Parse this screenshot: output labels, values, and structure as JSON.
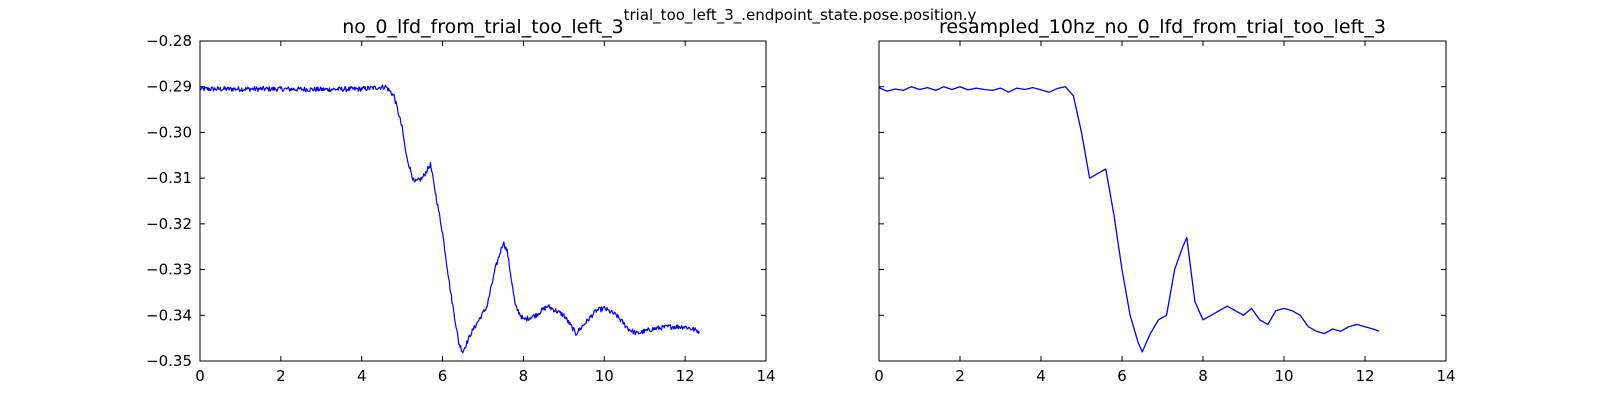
{
  "figure": {
    "suptitle": "trial_too_left_3_.endpoint_state.pose.position.y",
    "line_color": "#0000ff"
  },
  "chart_data": [
    {
      "type": "line",
      "title": "no_0_lfd_from_trial_too_left_3",
      "xlabel": "",
      "ylabel": "",
      "xlim": [
        0,
        14
      ],
      "ylim": [
        -0.35,
        -0.28
      ],
      "xticks": [
        0,
        2,
        4,
        6,
        8,
        10,
        12,
        14
      ],
      "yticks": [
        -0.35,
        -0.34,
        -0.33,
        -0.32,
        -0.31,
        -0.3,
        -0.29,
        -0.28
      ],
      "ytick_labels": [
        "−0.35",
        "−0.34",
        "−0.33",
        "−0.32",
        "−0.31",
        "−0.30",
        "−0.29",
        "−0.28"
      ],
      "show_yticklabels": true,
      "grid": false,
      "noisy": true,
      "series": [
        {
          "x": [
            0.0,
            1.0,
            2.0,
            3.0,
            4.0,
            4.6,
            4.8,
            5.0,
            5.1,
            5.3,
            5.5,
            5.7,
            5.8,
            6.0,
            6.2,
            6.4,
            6.5,
            6.7,
            6.9,
            7.1,
            7.3,
            7.5,
            7.6,
            7.8,
            8.0,
            8.3,
            8.6,
            9.0,
            9.3,
            9.5,
            9.8,
            10.0,
            10.3,
            10.6,
            10.8,
            11.2,
            11.6,
            12.0,
            12.35
          ],
          "y": [
            -0.2905,
            -0.2905,
            -0.2905,
            -0.2906,
            -0.2905,
            -0.29,
            -0.292,
            -0.299,
            -0.305,
            -0.311,
            -0.31,
            -0.307,
            -0.312,
            -0.322,
            -0.335,
            -0.346,
            -0.348,
            -0.344,
            -0.341,
            -0.338,
            -0.33,
            -0.324,
            -0.326,
            -0.338,
            -0.341,
            -0.34,
            -0.338,
            -0.34,
            -0.344,
            -0.342,
            -0.339,
            -0.3385,
            -0.34,
            -0.343,
            -0.344,
            -0.343,
            -0.3425,
            -0.3425,
            -0.3435
          ]
        }
      ]
    },
    {
      "type": "line",
      "title": "resampled_10hz_no_0_lfd_from_trial_too_left_3",
      "xlabel": "",
      "ylabel": "",
      "xlim": [
        0,
        14
      ],
      "ylim": [
        -0.35,
        -0.28
      ],
      "xticks": [
        0,
        2,
        4,
        6,
        8,
        10,
        12,
        14
      ],
      "yticks": [
        -0.35,
        -0.34,
        -0.33,
        -0.32,
        -0.31,
        -0.3,
        -0.29,
        -0.28
      ],
      "ytick_labels": [],
      "show_yticklabels": false,
      "grid": false,
      "noisy": false,
      "series": [
        {
          "x": [
            0.0,
            0.2,
            0.4,
            0.6,
            0.8,
            1.0,
            1.2,
            1.4,
            1.6,
            1.8,
            2.0,
            2.2,
            2.4,
            2.6,
            2.8,
            3.0,
            3.2,
            3.4,
            3.6,
            3.8,
            4.0,
            4.2,
            4.4,
            4.6,
            4.8,
            5.0,
            5.2,
            5.4,
            5.6,
            5.8,
            6.0,
            6.2,
            6.4,
            6.5,
            6.7,
            6.9,
            7.1,
            7.3,
            7.5,
            7.6,
            7.8,
            8.0,
            8.2,
            8.4,
            8.6,
            8.8,
            9.0,
            9.2,
            9.4,
            9.6,
            9.8,
            10.0,
            10.2,
            10.4,
            10.6,
            10.8,
            11.0,
            11.2,
            11.4,
            11.6,
            11.8,
            12.0,
            12.2,
            12.35
          ],
          "y": [
            -0.2902,
            -0.291,
            -0.2905,
            -0.2908,
            -0.29,
            -0.2906,
            -0.2902,
            -0.2908,
            -0.29,
            -0.2906,
            -0.29,
            -0.2907,
            -0.2903,
            -0.2906,
            -0.2908,
            -0.2903,
            -0.2912,
            -0.2903,
            -0.2906,
            -0.2902,
            -0.2907,
            -0.2912,
            -0.2904,
            -0.29,
            -0.292,
            -0.3,
            -0.31,
            -0.309,
            -0.308,
            -0.318,
            -0.33,
            -0.34,
            -0.346,
            -0.348,
            -0.344,
            -0.341,
            -0.34,
            -0.33,
            -0.325,
            -0.323,
            -0.337,
            -0.341,
            -0.34,
            -0.339,
            -0.338,
            -0.339,
            -0.34,
            -0.3385,
            -0.341,
            -0.342,
            -0.339,
            -0.3385,
            -0.339,
            -0.34,
            -0.3425,
            -0.3435,
            -0.344,
            -0.343,
            -0.3435,
            -0.3425,
            -0.342,
            -0.3425,
            -0.343,
            -0.3435
          ]
        }
      ]
    }
  ]
}
